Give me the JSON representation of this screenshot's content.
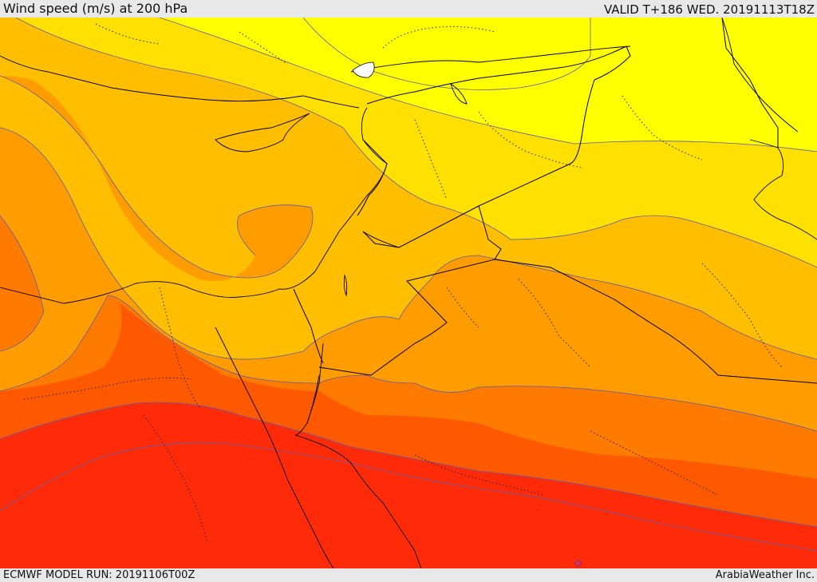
{
  "header": {
    "title": "Wind speed (m/s) at 200 hPa",
    "valid_time": "VALID T+186 WED. 20191113T18Z"
  },
  "footer": {
    "model_run": "ECMWF MODEL RUN: 20191106T00Z",
    "credit": "ArabiaWeather Inc."
  },
  "map": {
    "variable": "wind speed",
    "units": "m/s",
    "level_hpa": 200,
    "band_colors": [
      "#ffdfae",
      "#ffff00",
      "#ffe000",
      "#ffbe00",
      "#ff9c00",
      "#ff7b00",
      "#ff5900",
      "#ff2a07"
    ],
    "land_feature_colors": {
      "lake": "#ffffff",
      "marker": "#cc3366"
    }
  }
}
